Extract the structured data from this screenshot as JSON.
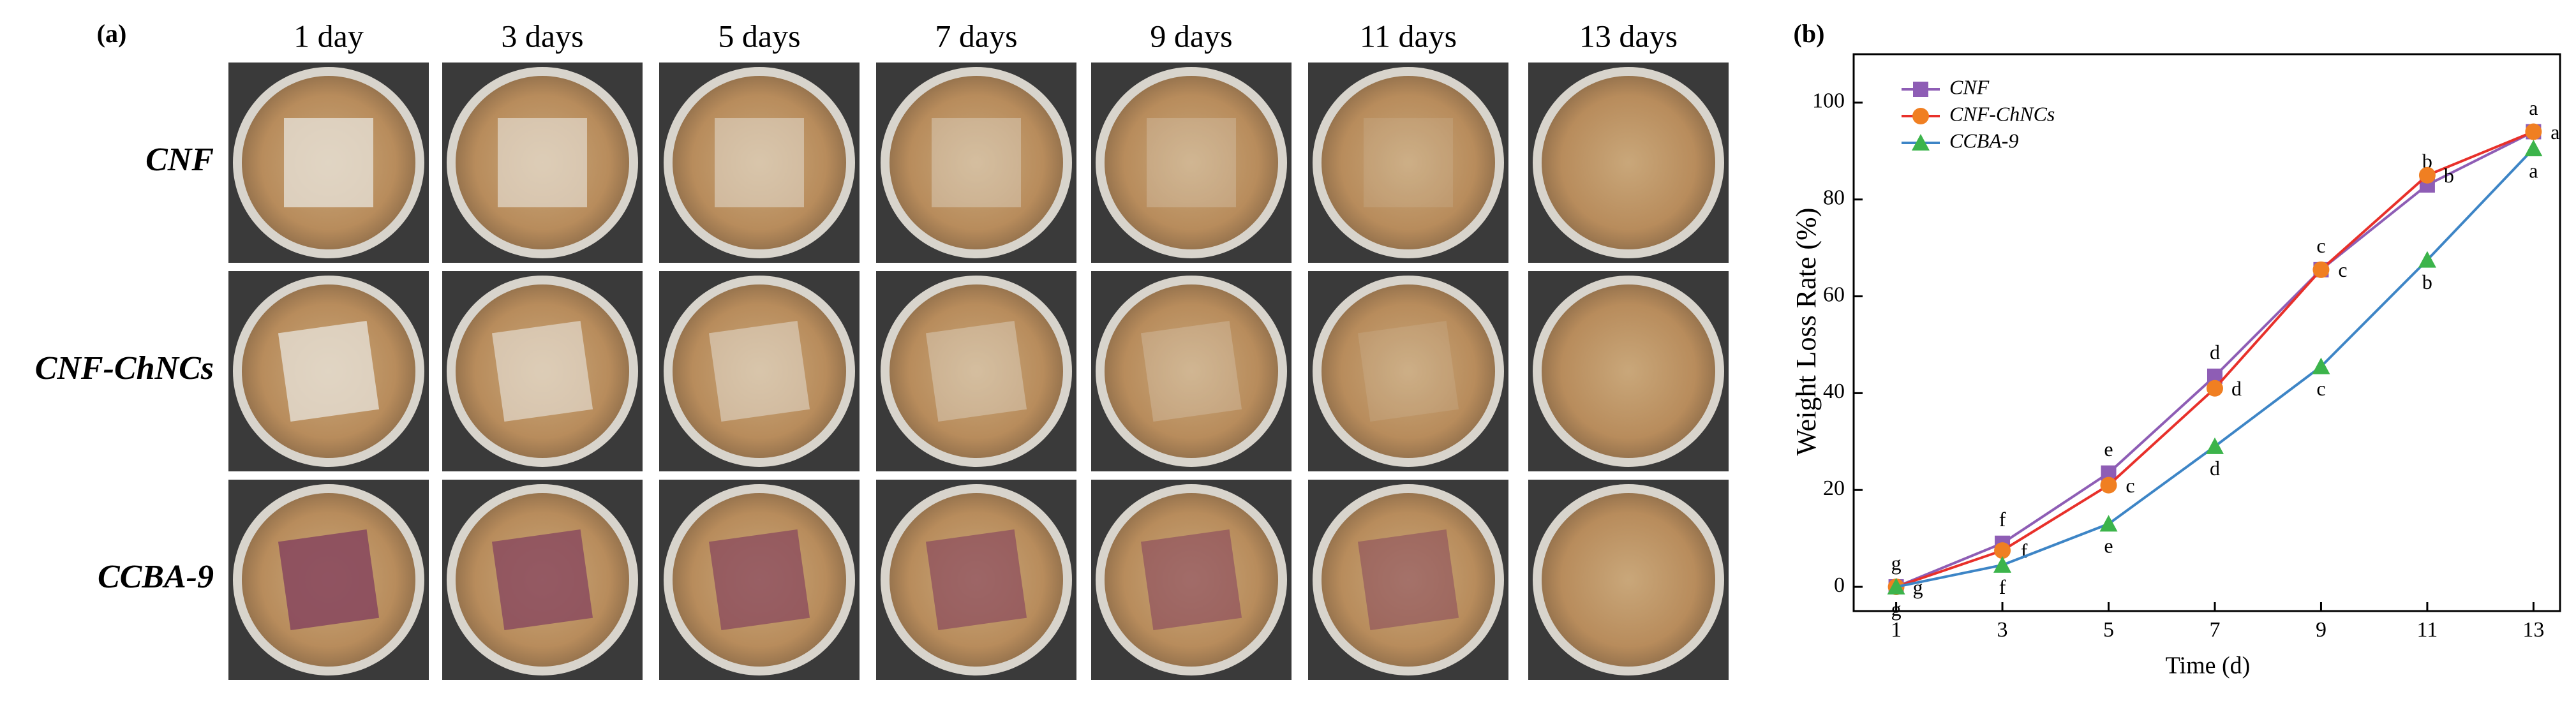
{
  "panel_a": {
    "label": "(a)",
    "columns": [
      "1 day",
      "3 days",
      "5 days",
      "7 days",
      "9 days",
      "11 days",
      "13 days"
    ],
    "rows": [
      "CNF",
      "CNF-ChNCs",
      "CCBA-9"
    ]
  },
  "chart_data": {
    "type": "line",
    "label": "(b)",
    "xlabel": "Time (d)",
    "ylabel": "Weight Loss Rate (%)",
    "x": [
      1,
      3,
      5,
      7,
      9,
      11,
      13
    ],
    "xlim": [
      0.2,
      13.5
    ],
    "xticks": [
      1,
      3,
      5,
      7,
      9,
      11,
      13
    ],
    "ylim": [
      -5,
      110
    ],
    "yticks": [
      0,
      20,
      40,
      60,
      80,
      100
    ],
    "legend": "upper-left",
    "series": [
      {
        "name": "CNF",
        "color": "#8e5db5",
        "line_color": "#8e5db5",
        "marker": "square",
        "values": [
          0,
          9,
          23.5,
          43.5,
          65.5,
          83,
          94
        ],
        "letters": [
          "g",
          "f",
          "e",
          "d",
          "c",
          "b",
          "a"
        ]
      },
      {
        "name": "CNF-ChNCs",
        "color": "#f07f22",
        "line_color": "#e8302a",
        "marker": "circle",
        "values": [
          0,
          7.5,
          21,
          41,
          65.5,
          85,
          94
        ],
        "letters": [
          "g",
          "f",
          "c",
          "d",
          "c",
          "b",
          "a"
        ]
      },
      {
        "name": "CCBA-9",
        "color": "#3cb44b",
        "line_color": "#3d85c6",
        "marker": "triangle",
        "values": [
          0,
          4.5,
          13,
          29,
          45.5,
          67.5,
          90.5
        ],
        "letters": [
          "g",
          "f",
          "e",
          "d",
          "c",
          "b",
          "a"
        ]
      }
    ]
  }
}
